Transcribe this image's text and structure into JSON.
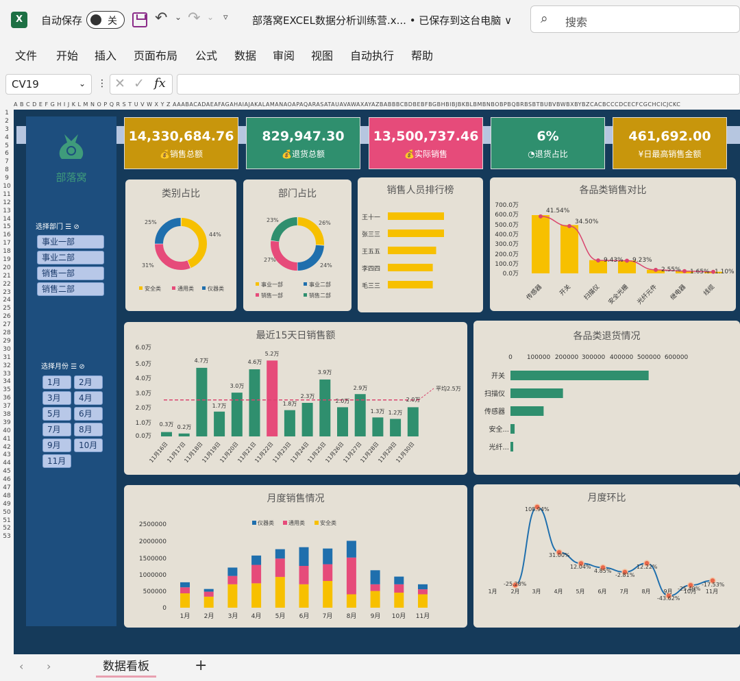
{
  "titlebar": {
    "autosave": "自动保存",
    "toggle": "关",
    "title": "部落窝EXCEL数据分析训练营.x... • 已保存到这台电脑 ∨",
    "search": "搜索",
    "excel_logo": "X"
  },
  "menu": [
    "文件",
    "开始",
    "插入",
    "页面布局",
    "公式",
    "数据",
    "审阅",
    "视图",
    "自动执行",
    "帮助"
  ],
  "namebox": "CV19",
  "columns": "A B C D E F G H I J K L M N O P Q R S T U V W X Y Z AAABACADAEAFAGAHAIAJAKALAMANAOAPAQARASATAUAVAWAXAYAZBABBBCBDBEBFBGBHBIBJBKBLBMBNBOBPBQBRBSBTBUBVBWBXBYBZCACBCCCDCECFCGCHCICJCKC",
  "rows": [
    "1",
    "2",
    "3",
    "4",
    "5",
    "6",
    "7",
    "8",
    "9",
    "10",
    "11",
    "12",
    "13",
    "14",
    "15",
    "16",
    "17",
    "18",
    "19",
    "20",
    "21",
    "22",
    "23",
    "24",
    "25",
    "26",
    "27",
    "28",
    "29",
    "30",
    "31",
    "32",
    "33",
    "34",
    "35",
    "36",
    "37",
    "38",
    "39",
    "40",
    "41",
    "42",
    "43",
    "44",
    "45",
    "46",
    "47",
    "48",
    "49",
    "50",
    "51",
    "52",
    "53"
  ],
  "sidebar": {
    "logo": "部落窝",
    "dept_label": "选择部门",
    "depts": [
      "事业一部",
      "事业二部",
      "销售一部",
      "销售二部"
    ],
    "month_label": "选择月份",
    "months": [
      "1月",
      "2月",
      "3月",
      "4月",
      "5月",
      "6月",
      "7月",
      "8月",
      "9月",
      "10月",
      "11月"
    ]
  },
  "kpis": [
    {
      "value": "14,330,684.76",
      "label": "销售总额",
      "color": "#c8960c"
    },
    {
      "value": "829,947.30",
      "label": "退货总额",
      "color": "#2f8f6e"
    },
    {
      "value": "13,500,737.46",
      "label": "实际销售",
      "color": "#e64b7a"
    },
    {
      "value": "6%",
      "label": "退货占比",
      "color": "#2f8f6e"
    },
    {
      "value": "461,692.00",
      "label": "日最高销售金额",
      "color": "#c8960c"
    }
  ],
  "cat_donut": {
    "title": "类别占比",
    "labels": [
      "44%",
      "31%",
      "25%"
    ],
    "legend": [
      "安全类",
      "通用类",
      "仪器类"
    ],
    "colors": [
      "#f7c000",
      "#e64b7a",
      "#1f6fad"
    ]
  },
  "dept_donut": {
    "title": "部门占比",
    "labels": [
      "26%",
      "24%",
      "27%",
      "23%"
    ],
    "legend": [
      "事业一部",
      "事业二部",
      "销售一部",
      "销售二部"
    ],
    "colors": [
      "#f7c000",
      "#1f6fad",
      "#e64b7a",
      "#2f8f6e"
    ]
  },
  "ranking": {
    "title": "销售人员排行榜",
    "names": [
      "王十一",
      "张三三",
      "王五五",
      "李四四",
      "毛三三"
    ]
  },
  "pareto": {
    "title": "各品类销售对比",
    "yticks": [
      "700.0万",
      "600.0万",
      "500.0万",
      "400.0万",
      "300.0万",
      "200.0万",
      "100.0万",
      "0.0万"
    ],
    "labels": [
      "41.54%",
      "34.50%",
      "9.43%",
      "9.23%",
      "2.55%",
      "1.65%",
      "1.10%"
    ],
    "cats": [
      "传感器",
      "开关",
      "扫描仪",
      "安全光栅",
      "光纤元件",
      "继电器",
      "线缆"
    ]
  },
  "daily": {
    "title": "最近15天日销售额",
    "yticks": [
      "6.0万",
      "5.0万",
      "4.0万",
      "3.0万",
      "2.0万",
      "1.0万",
      "0.0万"
    ],
    "labels": [
      "0.3万",
      "0.2万",
      "4.7万",
      "1.7万",
      "3.0万",
      "4.6万",
      "5.2万",
      "1.8万",
      "2.3万",
      "3.9万",
      "2.0万",
      "2.9万",
      "1.3万",
      "1.2万",
      "2.0万"
    ],
    "dates": [
      "11月16日",
      "11月17日",
      "11月18日",
      "11月19日",
      "11月20日",
      "11月21日",
      "11月22日",
      "11月23日",
      "11月24日",
      "11月25日",
      "11月26日",
      "11月27日",
      "11月28日",
      "11月29日",
      "11月30日"
    ],
    "avg": "平均2.5万"
  },
  "returns": {
    "title": "各品类退货情况",
    "xticks": [
      "0",
      "100000",
      "200000",
      "300000",
      "400000",
      "500000",
      "600000"
    ],
    "cats": [
      "开关",
      "扫描仪",
      "传感器",
      "安全...",
      "光纤..."
    ]
  },
  "monthly": {
    "title": "月度销售情况",
    "yticks": [
      "2500000",
      "2000000",
      "1500000",
      "1000000",
      "500000",
      "0"
    ],
    "legend": [
      "仪器类",
      "通用类",
      "安全类"
    ],
    "months": [
      "1月",
      "2月",
      "3月",
      "4月",
      "5月",
      "6月",
      "7月",
      "8月",
      "9月",
      "10月",
      "11月"
    ]
  },
  "mom": {
    "title": "月度环比",
    "labels": [
      "-25.28%",
      "108.94%",
      "31.00%",
      "12.04%",
      "4.85%",
      "-2.81%",
      "12.22%",
      "-43.62%",
      "-25.49%",
      "-17.53%"
    ],
    "months": [
      "1月",
      "2月",
      "3月",
      "4月",
      "5月",
      "6月",
      "7月",
      "8月",
      "9月",
      "10月",
      "11月"
    ]
  },
  "chart_data": [
    {
      "type": "pie",
      "title": "类别占比",
      "categories": [
        "安全类",
        "通用类",
        "仪器类"
      ],
      "values": [
        44,
        31,
        25
      ]
    },
    {
      "type": "pie",
      "title": "部门占比",
      "categories": [
        "事业一部",
        "事业二部",
        "销售一部",
        "销售二部"
      ],
      "values": [
        26,
        24,
        27,
        23
      ]
    },
    {
      "type": "bar",
      "title": "销售人员排行榜",
      "categories": [
        "王十一",
        "张三三",
        "王五五",
        "李四四",
        "毛三三"
      ],
      "values": [
        100,
        100,
        86,
        80,
        80
      ]
    },
    {
      "type": "bar",
      "title": "各品类销售对比",
      "categories": [
        "传感器",
        "开关",
        "扫描仪",
        "安全光栅",
        "光纤元件",
        "继电器",
        "线缆"
      ],
      "values": [
        595,
        494,
        135,
        132,
        37,
        24,
        16
      ],
      "pct": [
        41.54,
        34.5,
        9.43,
        9.23,
        2.55,
        1.65,
        1.1
      ],
      "ylim": [
        0,
        700
      ]
    },
    {
      "type": "bar",
      "title": "最近15天日销售额",
      "categories": [
        "11月16日",
        "11月17日",
        "11月18日",
        "11月19日",
        "11月20日",
        "11月21日",
        "11月22日",
        "11月23日",
        "11月24日",
        "11月25日",
        "11月26日",
        "11月27日",
        "11月28日",
        "11月29日",
        "11月30日"
      ],
      "values": [
        0.3,
        0.2,
        4.7,
        1.7,
        3.0,
        4.6,
        5.2,
        1.8,
        2.3,
        3.9,
        2.0,
        2.9,
        1.3,
        1.2,
        2.0
      ],
      "highlight_index": 6,
      "average": 2.5,
      "ylim": [
        0,
        6
      ]
    },
    {
      "type": "bar",
      "title": "各品类退货情况",
      "categories": [
        "开关",
        "扫描仪",
        "传感器",
        "安全...",
        "光纤..."
      ],
      "values": [
        500000,
        190000,
        120000,
        15000,
        10000
      ],
      "xlim": [
        0,
        600000
      ]
    },
    {
      "type": "bar",
      "title": "月度销售情况",
      "categories": [
        "1月",
        "2月",
        "3月",
        "4月",
        "5月",
        "6月",
        "7月",
        "8月",
        "9月",
        "10月",
        "11月"
      ],
      "series": [
        {
          "name": "安全类",
          "values": [
            430000,
            330000,
            700000,
            730000,
            920000,
            700000,
            800000,
            400000,
            500000,
            450000,
            400000
          ]
        },
        {
          "name": "通用类",
          "values": [
            180000,
            150000,
            250000,
            550000,
            550000,
            550000,
            500000,
            1100000,
            200000,
            250000,
            150000
          ]
        },
        {
          "name": "仪器类",
          "values": [
            150000,
            80000,
            250000,
            280000,
            280000,
            560000,
            470000,
            500000,
            420000,
            230000,
            150000
          ]
        }
      ],
      "ylim": [
        0,
        2500000
      ]
    },
    {
      "type": "line",
      "title": "月度环比",
      "categories": [
        "2月",
        "3月",
        "4月",
        "5月",
        "6月",
        "7月",
        "8月",
        "9月",
        "10月",
        "11月"
      ],
      "values": [
        -25.28,
        108.94,
        31.0,
        12.04,
        4.85,
        -2.81,
        12.22,
        -43.62,
        -25.49,
        -17.53
      ]
    }
  ]
}
